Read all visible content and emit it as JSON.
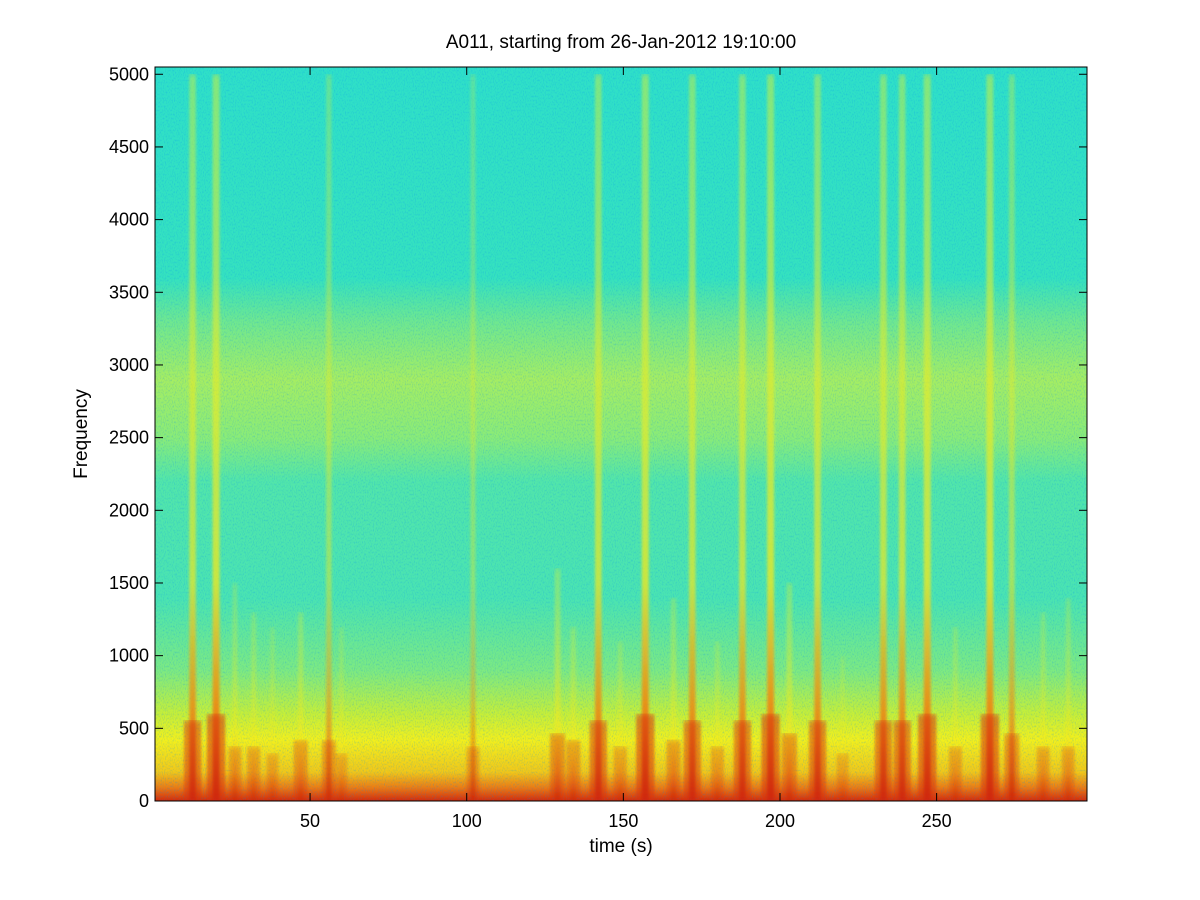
{
  "chart_data": {
    "type": "heatmap",
    "subtype": "spectrogram",
    "title": "A011, starting from 26-Jan-2012 19:10:00",
    "xlabel": "time (s)",
    "ylabel": "Frequency",
    "xlim": [
      0.5,
      298
    ],
    "ylim": [
      0,
      5050
    ],
    "x_ticks": [
      50,
      100,
      150,
      200,
      250
    ],
    "y_ticks": [
      0,
      500,
      1000,
      1500,
      2000,
      2500,
      3000,
      3500,
      4000,
      4500,
      5000
    ],
    "colormap": "jet",
    "background_level": "cyan (low energy) at high frequencies",
    "low_frequency_band": {
      "from": 0,
      "to": 500,
      "level": "yellow to red (high energy)"
    },
    "broadband_band": {
      "from": 2500,
      "to": 3300,
      "level": "yellow-green"
    },
    "transient_events": [
      {
        "time": 12.5,
        "max_freq": 5000,
        "intensity": 0.9
      },
      {
        "time": 20,
        "max_freq": 5000,
        "intensity": 1.0
      },
      {
        "time": 26,
        "max_freq": 1500,
        "intensity": 0.5
      },
      {
        "time": 32,
        "max_freq": 1300,
        "intensity": 0.5
      },
      {
        "time": 38,
        "max_freq": 1200,
        "intensity": 0.4
      },
      {
        "time": 47,
        "max_freq": 1300,
        "intensity": 0.6
      },
      {
        "time": 56,
        "max_freq": 5000,
        "intensity": 0.6
      },
      {
        "time": 60,
        "max_freq": 1200,
        "intensity": 0.4
      },
      {
        "time": 102,
        "max_freq": 5000,
        "intensity": 0.5
      },
      {
        "time": 129,
        "max_freq": 1600,
        "intensity": 0.7
      },
      {
        "time": 134,
        "max_freq": 1200,
        "intensity": 0.6
      },
      {
        "time": 142,
        "max_freq": 5000,
        "intensity": 0.9
      },
      {
        "time": 149,
        "max_freq": 1100,
        "intensity": 0.5
      },
      {
        "time": 157,
        "max_freq": 5000,
        "intensity": 1.0
      },
      {
        "time": 166,
        "max_freq": 1400,
        "intensity": 0.6
      },
      {
        "time": 172,
        "max_freq": 5000,
        "intensity": 0.9
      },
      {
        "time": 180,
        "max_freq": 1100,
        "intensity": 0.5
      },
      {
        "time": 188,
        "max_freq": 5000,
        "intensity": 0.9
      },
      {
        "time": 197,
        "max_freq": 5000,
        "intensity": 1.0
      },
      {
        "time": 203,
        "max_freq": 1500,
        "intensity": 0.7
      },
      {
        "time": 212,
        "max_freq": 5000,
        "intensity": 0.9
      },
      {
        "time": 220,
        "max_freq": 1000,
        "intensity": 0.4
      },
      {
        "time": 233,
        "max_freq": 5000,
        "intensity": 0.9
      },
      {
        "time": 239,
        "max_freq": 5000,
        "intensity": 0.9
      },
      {
        "time": 247,
        "max_freq": 5000,
        "intensity": 1.0
      },
      {
        "time": 256,
        "max_freq": 1200,
        "intensity": 0.5
      },
      {
        "time": 267,
        "max_freq": 5000,
        "intensity": 1.0
      },
      {
        "time": 274,
        "max_freq": 5000,
        "intensity": 0.7
      },
      {
        "time": 284,
        "max_freq": 1300,
        "intensity": 0.5
      },
      {
        "time": 292,
        "max_freq": 1400,
        "intensity": 0.5
      }
    ]
  }
}
